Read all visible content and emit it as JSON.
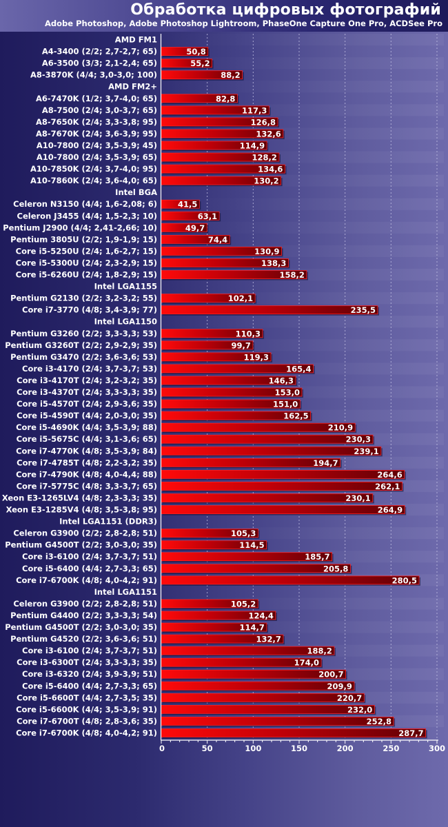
{
  "chart_data": {
    "type": "bar",
    "orientation": "horizontal",
    "title": "Обработка цифровых фотографий",
    "subtitle": "Adobe Photoshop, Adobe Photoshop Lightroom, PhaseOne Capture One Pro, ACDSee Pro",
    "xlabel": "",
    "ylabel": "",
    "xlim": [
      0,
      300
    ],
    "xticks": [
      "0",
      "50",
      "100",
      "150",
      "200",
      "250",
      "300"
    ],
    "grid": true,
    "legend": "none",
    "bar_color": "#e8000a",
    "rows": [
      {
        "group": "AMD FM1"
      },
      {
        "label": "A4-3400 (2/2; 2,7-2,7; 65)",
        "value": 50.8,
        "text": "50,8"
      },
      {
        "label": "A6-3500 (3/3; 2,1-2,4; 65)",
        "value": 55.2,
        "text": "55,2"
      },
      {
        "label": "A8-3870K (4/4; 3,0-3,0; 100)",
        "value": 88.2,
        "text": "88,2"
      },
      {
        "group": "AMD FM2+"
      },
      {
        "label": "A6-7470K (1/2; 3,7-4,0; 65)",
        "value": 82.8,
        "text": "82,8"
      },
      {
        "label": "A8-7500 (2/4; 3,0-3,7; 65)",
        "value": 117.3,
        "text": "117,3"
      },
      {
        "label": "A8-7650K (2/4; 3,3-3,8; 95)",
        "value": 126.8,
        "text": "126,8"
      },
      {
        "label": "A8-7670K (2/4; 3,6-3,9; 95)",
        "value": 132.6,
        "text": "132,6"
      },
      {
        "label": "A10-7800 (2/4; 3,5-3,9; 45)",
        "value": 114.9,
        "text": "114,9"
      },
      {
        "label": "A10-7800 (2/4; 3,5-3,9; 65)",
        "value": 128.2,
        "text": "128,2"
      },
      {
        "label": "A10-7850K (2/4; 3,7-4,0; 95)",
        "value": 134.6,
        "text": "134,6"
      },
      {
        "label": "A10-7860K (2/4; 3,6-4,0; 65)",
        "value": 130.2,
        "text": "130,2"
      },
      {
        "group": "Intel BGA"
      },
      {
        "label": "Celeron N3150 (4/4; 1,6-2,08; 6)",
        "value": 41.5,
        "text": "41,5"
      },
      {
        "label": "Celeron J3455 (4/4; 1,5-2,3; 10)",
        "value": 63.1,
        "text": "63,1"
      },
      {
        "label": "Pentium J2900 (4/4; 2,41-2,66; 10)",
        "value": 49.7,
        "text": "49,7"
      },
      {
        "label": "Pentium 3805U (2/2; 1,9-1,9; 15)",
        "value": 74.4,
        "text": "74,4"
      },
      {
        "label": "Core i5-5250U (2/4; 1,6-2,7; 15)",
        "value": 130.9,
        "text": "130,9"
      },
      {
        "label": "Core i5-5300U (2/4; 2,3-2,9; 15)",
        "value": 138.3,
        "text": "138,3"
      },
      {
        "label": "Core i5-6260U (2/4; 1,8-2,9; 15)",
        "value": 158.2,
        "text": "158,2"
      },
      {
        "group": "Intel LGA1155"
      },
      {
        "label": "Pentium G2130 (2/2; 3,2-3,2; 55)",
        "value": 102.1,
        "text": "102,1"
      },
      {
        "label": "Core i7-3770 (4/8; 3,4-3,9; 77)",
        "value": 235.5,
        "text": "235,5"
      },
      {
        "group": "Intel LGA1150"
      },
      {
        "label": "Pentium G3260 (2/2; 3,3-3,3; 53)",
        "value": 110.3,
        "text": "110,3"
      },
      {
        "label": "Pentium G3260T (2/2; 2,9-2,9; 35)",
        "value": 99.7,
        "text": "99,7"
      },
      {
        "label": "Pentium G3470 (2/2; 3,6-3,6; 53)",
        "value": 119.3,
        "text": "119,3"
      },
      {
        "label": "Core i3-4170 (2/4; 3,7-3,7; 53)",
        "value": 165.4,
        "text": "165,4"
      },
      {
        "label": "Core i3-4170T  (2/4; 3,2-3,2; 35)",
        "value": 146.3,
        "text": "146,3"
      },
      {
        "label": "Core i3-4370T (2/4; 3,3-3,3; 35)",
        "value": 153.0,
        "text": "153,0"
      },
      {
        "label": "Core i5-4570T (2/4; 2,9-3,6; 35)",
        "value": 151.0,
        "text": "151,0"
      },
      {
        "label": "Core i5-4590T (4/4; 2,0-3,0; 35)",
        "value": 162.5,
        "text": "162,5"
      },
      {
        "label": "Core i5-4690K (4/4; 3,5-3,9; 88)",
        "value": 210.9,
        "text": "210,9"
      },
      {
        "label": "Core i5-5675C (4/4; 3,1-3,6; 65)",
        "value": 230.3,
        "text": "230,3"
      },
      {
        "label": "Core i7-4770K (4/8; 3,5-3,9; 84)",
        "value": 239.1,
        "text": "239,1"
      },
      {
        "label": "Core i7-4785T (4/8; 2,2-3,2; 35)",
        "value": 194.7,
        "text": "194,7"
      },
      {
        "label": "Core i7-4790K (4/8; 4,0-4,4; 88)",
        "value": 264.6,
        "text": "264,6"
      },
      {
        "label": "Core i7-5775C (4/8; 3,3-3,7; 65)",
        "value": 262.1,
        "text": "262,1"
      },
      {
        "label": "Xeon E3-1265LV4 (4/8; 2,3-3,3; 35)",
        "value": 230.1,
        "text": "230,1"
      },
      {
        "label": "Xeon E3-1285V4 (4/8; 3,5-3,8; 95)",
        "value": 264.9,
        "text": "264,9"
      },
      {
        "group": "Intel LGA1151 (DDR3)"
      },
      {
        "label": "Celeron G3900 (2/2; 2,8-2,8; 51)",
        "value": 105.3,
        "text": "105,3"
      },
      {
        "label": "Pentium G4500T (2/2; 3,0-3,0; 35)",
        "value": 114.5,
        "text": "114,5"
      },
      {
        "label": "Core i3-6100 (2/4; 3,7-3,7; 51)",
        "value": 185.7,
        "text": "185,7"
      },
      {
        "label": "Core i5-6400 (4/4; 2,7-3,3; 65)",
        "value": 205.8,
        "text": "205,8"
      },
      {
        "label": "Core i7-6700K (4/8; 4,0-4,2; 91)",
        "value": 280.5,
        "text": "280,5"
      },
      {
        "group": "Intel LGA1151"
      },
      {
        "label": "Celeron G3900 (2/2; 2,8-2,8; 51)",
        "value": 105.2,
        "text": "105,2"
      },
      {
        "label": "Pentium G4400 (2/2; 3,3-3,3; 54)",
        "value": 124.4,
        "text": "124,4"
      },
      {
        "label": "Pentium G4500T (2/2; 3,0-3,0; 35)",
        "value": 114.7,
        "text": "114,7"
      },
      {
        "label": "Pentium G4520 (2/2; 3,6-3,6; 51)",
        "value": 132.7,
        "text": "132,7"
      },
      {
        "label": "Core i3-6100 (2/4; 3,7-3,7; 51)",
        "value": 188.2,
        "text": "188,2"
      },
      {
        "label": "Core i3-6300T (2/4; 3,3-3,3; 35)",
        "value": 174.0,
        "text": "174,0"
      },
      {
        "label": "Core i3-6320 (2/4; 3,9-3,9; 51)",
        "value": 200.7,
        "text": "200,7"
      },
      {
        "label": "Core i5-6400 (4/4; 2,7-3,3; 65)",
        "value": 209.9,
        "text": "209,9"
      },
      {
        "label": "Core i5-6600T (4/4; 2,7-3,5; 35)",
        "value": 220.7,
        "text": "220,7"
      },
      {
        "label": "Core i5-6600K (4/4; 3,5-3,9; 91)",
        "value": 232.0,
        "text": "232,0"
      },
      {
        "label": "Core i7-6700T (4/8; 2,8-3,6; 35)",
        "value": 252.8,
        "text": "252,8"
      },
      {
        "label": "Core i7-6700K (4/8; 4,0-4,2; 91)",
        "value": 287.7,
        "text": "287,7"
      }
    ]
  }
}
